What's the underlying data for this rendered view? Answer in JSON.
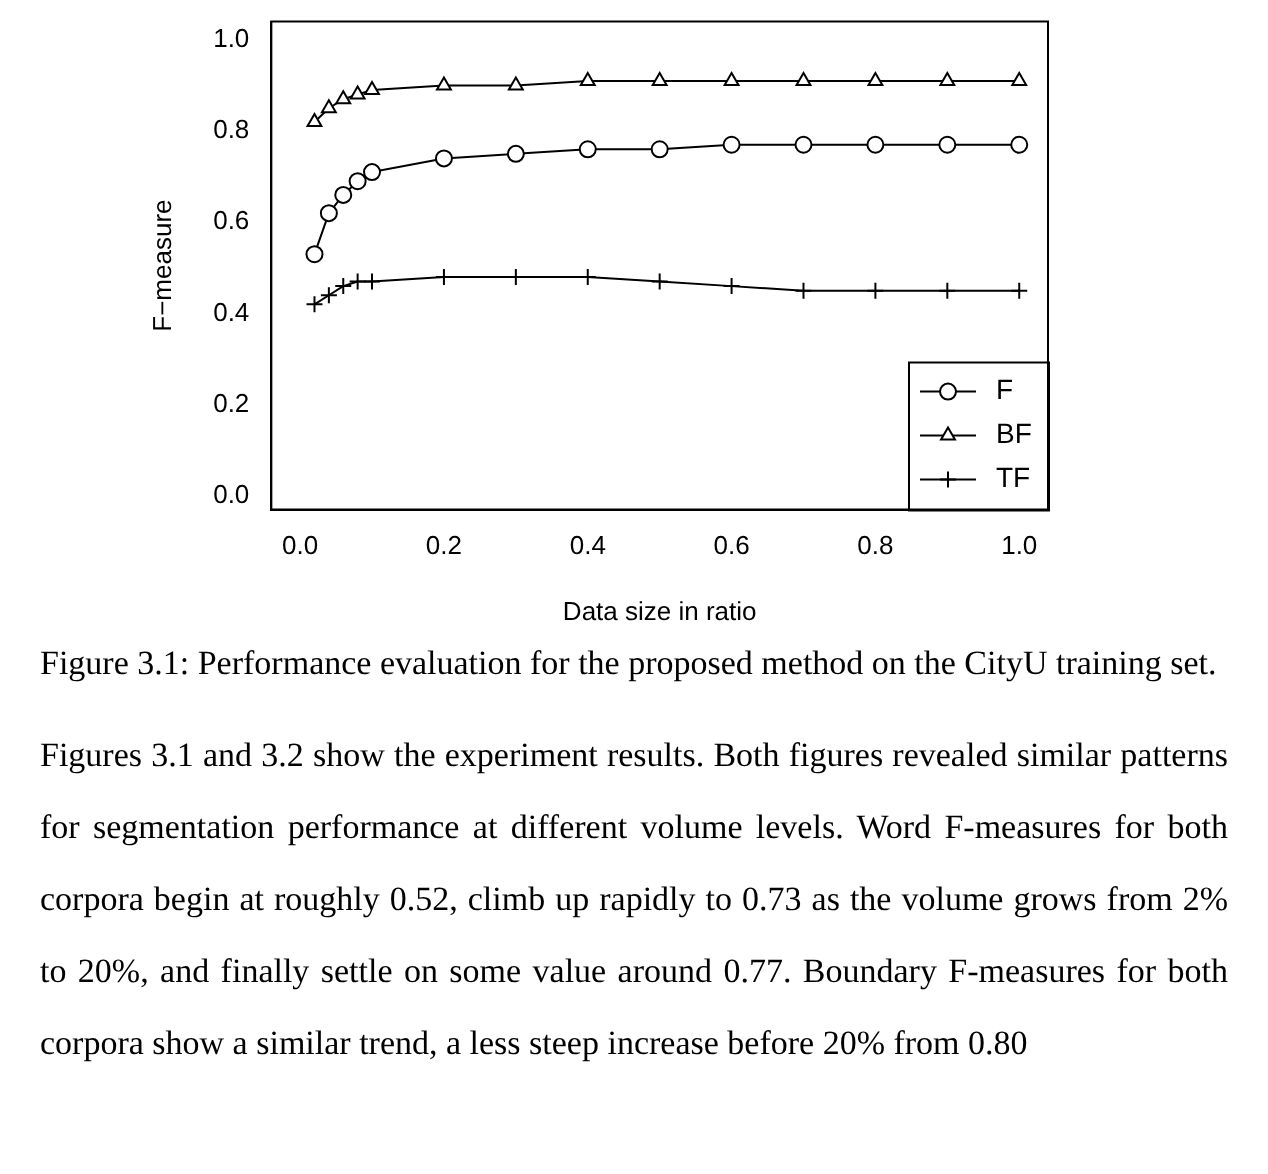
{
  "chart_data": {
    "type": "line",
    "xlabel": "Data size in ratio",
    "ylabel": "F−measure",
    "x": [
      0.02,
      0.04,
      0.06,
      0.08,
      0.1,
      0.2,
      0.3,
      0.4,
      0.5,
      0.6,
      0.7,
      0.8,
      0.9,
      1.0
    ],
    "series": [
      {
        "name": "F",
        "color": "#000000",
        "marker": "circle",
        "values": [
          0.53,
          0.62,
          0.66,
          0.69,
          0.71,
          0.74,
          0.75,
          0.76,
          0.76,
          0.77,
          0.77,
          0.77,
          0.77,
          0.77
        ]
      },
      {
        "name": "BF",
        "color": "#000000",
        "marker": "triangle",
        "values": [
          0.82,
          0.85,
          0.87,
          0.88,
          0.89,
          0.9,
          0.9,
          0.91,
          0.91,
          0.91,
          0.91,
          0.91,
          0.91,
          0.91
        ]
      },
      {
        "name": "TF",
        "color": "#000000",
        "marker": "cross",
        "values": [
          0.42,
          0.44,
          0.46,
          0.47,
          0.47,
          0.48,
          0.48,
          0.48,
          0.47,
          0.46,
          0.45,
          0.45,
          0.45,
          0.45
        ]
      }
    ],
    "xlim": [
      -0.04,
      1.04
    ],
    "ylim": [
      -0.03,
      1.04
    ],
    "xticks": [
      {
        "value": 0,
        "label": "0.0"
      },
      {
        "value": 0.2,
        "label": "0.2"
      },
      {
        "value": 0.4,
        "label": "0.4"
      },
      {
        "value": 0.6,
        "label": "0.6"
      },
      {
        "value": 0.8,
        "label": "0.8"
      },
      {
        "value": 1,
        "label": "1.0"
      }
    ],
    "yticks": [
      {
        "value": 0,
        "label": "0.0"
      },
      {
        "value": 0.2,
        "label": "0.2"
      },
      {
        "value": 0.4,
        "label": "0.4"
      },
      {
        "value": 0.6,
        "label": "0.6"
      },
      {
        "value": 0.8,
        "label": "0.8"
      },
      {
        "value": 1,
        "label": "1.0"
      }
    ],
    "grid": false,
    "legend": "bottom right",
    "line_style": "solid",
    "annotations": [
      "Figure 3.1: Performance evaluation for the proposed method on the CityU training set.",
      "Figures 3.1 and 3.2 show the experiment results. Both figures revealed similar patterns for segmentation performance at different volume levels. Word F-measures for both corpora begin at roughly 0.52, climb up rapidly to 0.73 as the volume grows from 2% to 20%, and finally settle on some value around 0.77. Boundary F-measures for both corpora show a similar trend, a less steep increase before 20% from 0.80"
    ]
  }
}
